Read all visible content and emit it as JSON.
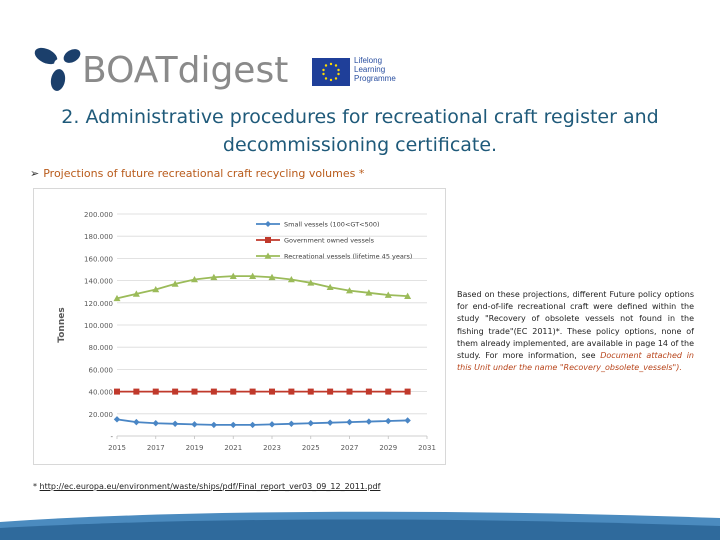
{
  "logo": {
    "brand_text": "BOATdigest"
  },
  "programme": {
    "line1": "Lifelong",
    "line2": "Learning",
    "line3": "Programme"
  },
  "slide": {
    "title_line1": "2. Administrative procedures for recreational craft register and",
    "title_line2": "decommissioning certificate.",
    "bullet": "Projections of future recreational craft recycling volumes *"
  },
  "body": {
    "text_plain": "Based on these projections, different Future policy options for end-of-life recreational craft were defined within the study \"Recovery of obsolete vessels not found in the fishing trade\"(EC 2011)*. These policy options, none of them already implemented, are available in page 14 of the study. For more information, see ",
    "text_highlight": "Document attached in this Unit under the name \"Recovery_obsolete_vessels\")."
  },
  "footnote": {
    "marker": "*",
    "url": "http://ec.europa.eu/environment/waste/ships/pdf/Final_report_ver03_09_12_2011.pdf"
  },
  "colors": {
    "title": "#1f5a7a",
    "bullet": "#b85a1a",
    "small": "#4a86c5",
    "government": "#c0392b",
    "recreational": "#9bbb59"
  },
  "chart_data": {
    "type": "line",
    "ylabel": "Tonnes",
    "xlabel": "",
    "ylim": [
      0,
      200000
    ],
    "xlim": [
      2015,
      2031
    ],
    "y_ticks": [
      0,
      20000,
      40000,
      60000,
      80000,
      100000,
      120000,
      140000,
      160000,
      180000,
      200000
    ],
    "y_tick_labels": [
      "-",
      "20.000",
      "40.000",
      "60.000",
      "80.000",
      "100.000",
      "120.000",
      "140.000",
      "160.000",
      "180.000",
      "200.000"
    ],
    "x_ticks": [
      2015,
      2017,
      2019,
      2021,
      2023,
      2025,
      2027,
      2029,
      2031
    ],
    "x_tick_labels": [
      "2015",
      "2017",
      "2019",
      "2021",
      "2023",
      "2025",
      "2027",
      "2029",
      "2031"
    ],
    "x": [
      2015,
      2016,
      2017,
      2018,
      2019,
      2020,
      2021,
      2022,
      2023,
      2024,
      2025,
      2026,
      2027,
      2028,
      2029,
      2030
    ],
    "legend_position": "top-right",
    "grid": true,
    "series": [
      {
        "name": "Small vessels (100<GT<500)",
        "color": "#4a86c5",
        "marker": "diamond",
        "values": [
          15000,
          12500,
          11500,
          11000,
          10500,
          10000,
          10000,
          10000,
          10500,
          11000,
          11500,
          12000,
          12500,
          13000,
          13500,
          14000
        ]
      },
      {
        "name": "Government owned vessels",
        "color": "#c0392b",
        "marker": "square",
        "values": [
          40000,
          40000,
          40000,
          40000,
          40000,
          40000,
          40000,
          40000,
          40000,
          40000,
          40000,
          40000,
          40000,
          40000,
          40000,
          40000
        ]
      },
      {
        "name": "Recreational vessels (lifetime 45 years)",
        "color": "#9bbb59",
        "marker": "triangle",
        "values": [
          124000,
          128000,
          132000,
          137000,
          141000,
          143000,
          144000,
          144000,
          143000,
          141000,
          138000,
          134000,
          131000,
          129000,
          127000,
          126000
        ]
      }
    ]
  }
}
